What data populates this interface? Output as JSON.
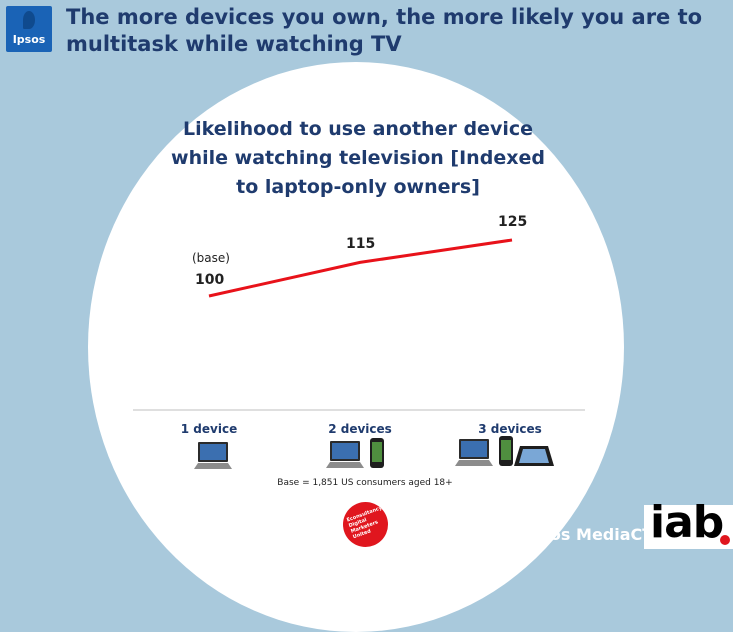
{
  "slide": {
    "title": "The more devices you own, the more likely you are to multitask while watching TV",
    "logo_text": "Ipsos",
    "footnote": "Base = 1,851 US consumers aged 18+",
    "badge_text": "Econsultancy Digital Marketers United",
    "brand": "Ipsos MediaCT",
    "partner_logo": "iab"
  },
  "chart_data": {
    "type": "line",
    "title": "Likelihood to use another device while watching television [Indexed to laptop-only owners]",
    "categories": [
      "1 device",
      "2 devices",
      "3 devices"
    ],
    "values": [
      100,
      115,
      125
    ],
    "data_labels": [
      "100",
      "115",
      "125"
    ],
    "base_annotation": "(base)",
    "line_color": "#e8121a",
    "icons": [
      [
        "laptop-icon"
      ],
      [
        "laptop-icon",
        "smartphone-icon"
      ],
      [
        "laptop-icon",
        "smartphone-icon",
        "tablet-icon"
      ]
    ]
  }
}
